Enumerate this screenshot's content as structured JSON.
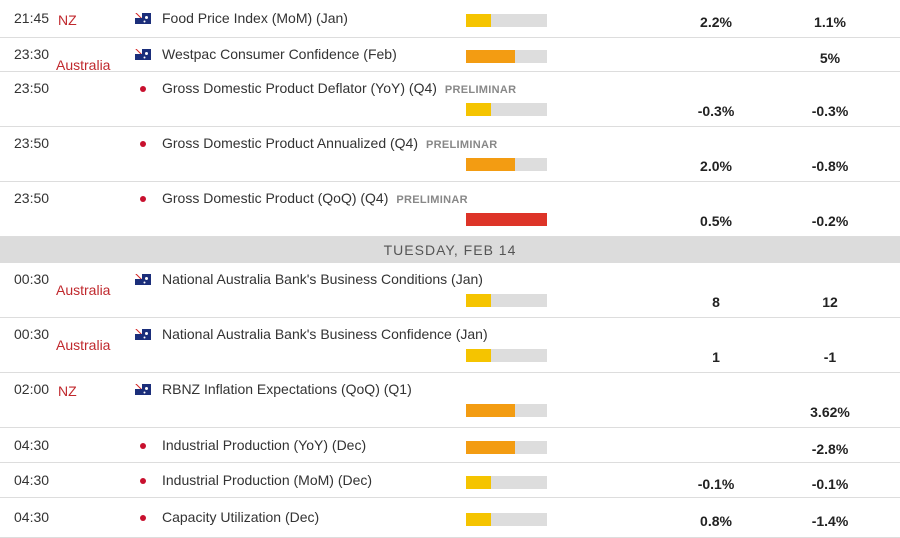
{
  "colors": {
    "low": "#f5c400",
    "medium": "#f39c12",
    "high": "#dd3428",
    "bar_bg": "#dddddd",
    "country": "#c0282d"
  },
  "importance_levels": {
    "low": "1/3",
    "medium": "2/3",
    "high": "3/3"
  },
  "separator": {
    "label": "TUESDAY, FEB 14"
  },
  "events": [
    {
      "time": "21:45",
      "country": "NZ",
      "flag": "au",
      "title": "Food Price Index (MoM) (Jan)",
      "tag": "",
      "importance": "low",
      "actual": "2.2%",
      "forecast": "1.1%"
    },
    {
      "time": "23:30",
      "country": "Australia",
      "flag": "au",
      "title": "Westpac Consumer Confidence (Feb)",
      "tag": "",
      "importance": "medium",
      "actual": "",
      "forecast": "5%"
    },
    {
      "time": "23:50",
      "country": "",
      "flag": "jp",
      "title": "Gross Domestic Product Deflator (YoY) (Q4)",
      "tag": "PRELIMINAR",
      "importance": "low",
      "actual": "-0.3%",
      "forecast": "-0.3%"
    },
    {
      "time": "23:50",
      "country": "",
      "flag": "jp",
      "title": "Gross Domestic Product Annualized (Q4)",
      "tag": "PRELIMINAR",
      "importance": "medium",
      "actual": "2.0%",
      "forecast": "-0.8%"
    },
    {
      "time": "23:50",
      "country": "",
      "flag": "jp",
      "title": "Gross Domestic Product (QoQ) (Q4)",
      "tag": "PRELIMINAR",
      "importance": "high",
      "actual": "0.5%",
      "forecast": "-0.2%"
    },
    {
      "time": "00:30",
      "country": "Australia",
      "flag": "au",
      "title": "National Australia Bank's Business Conditions (Jan)",
      "tag": "",
      "importance": "low",
      "actual": "8",
      "forecast": "12"
    },
    {
      "time": "00:30",
      "country": "Australia",
      "flag": "au",
      "title": "National Australia Bank's Business Confidence (Jan)",
      "tag": "",
      "importance": "low",
      "actual": "1",
      "forecast": "-1"
    },
    {
      "time": "02:00",
      "country": "NZ",
      "flag": "au",
      "title": "RBNZ Inflation Expectations (QoQ) (Q1)",
      "tag": "",
      "importance": "medium",
      "actual": "",
      "forecast": "3.62%"
    },
    {
      "time": "04:30",
      "country": "",
      "flag": "jp",
      "title": "Industrial Production (YoY) (Dec)",
      "tag": "",
      "importance": "medium",
      "actual": "",
      "forecast": "-2.8%"
    },
    {
      "time": "04:30",
      "country": "",
      "flag": "jp",
      "title": "Industrial Production (MoM) (Dec)",
      "tag": "",
      "importance": "low",
      "actual": "-0.1%",
      "forecast": "-0.1%"
    },
    {
      "time": "04:30",
      "country": "",
      "flag": "jp",
      "title": "Capacity Utilization (Dec)",
      "tag": "",
      "importance": "low",
      "actual": "0.8%",
      "forecast": "-1.4%"
    }
  ]
}
